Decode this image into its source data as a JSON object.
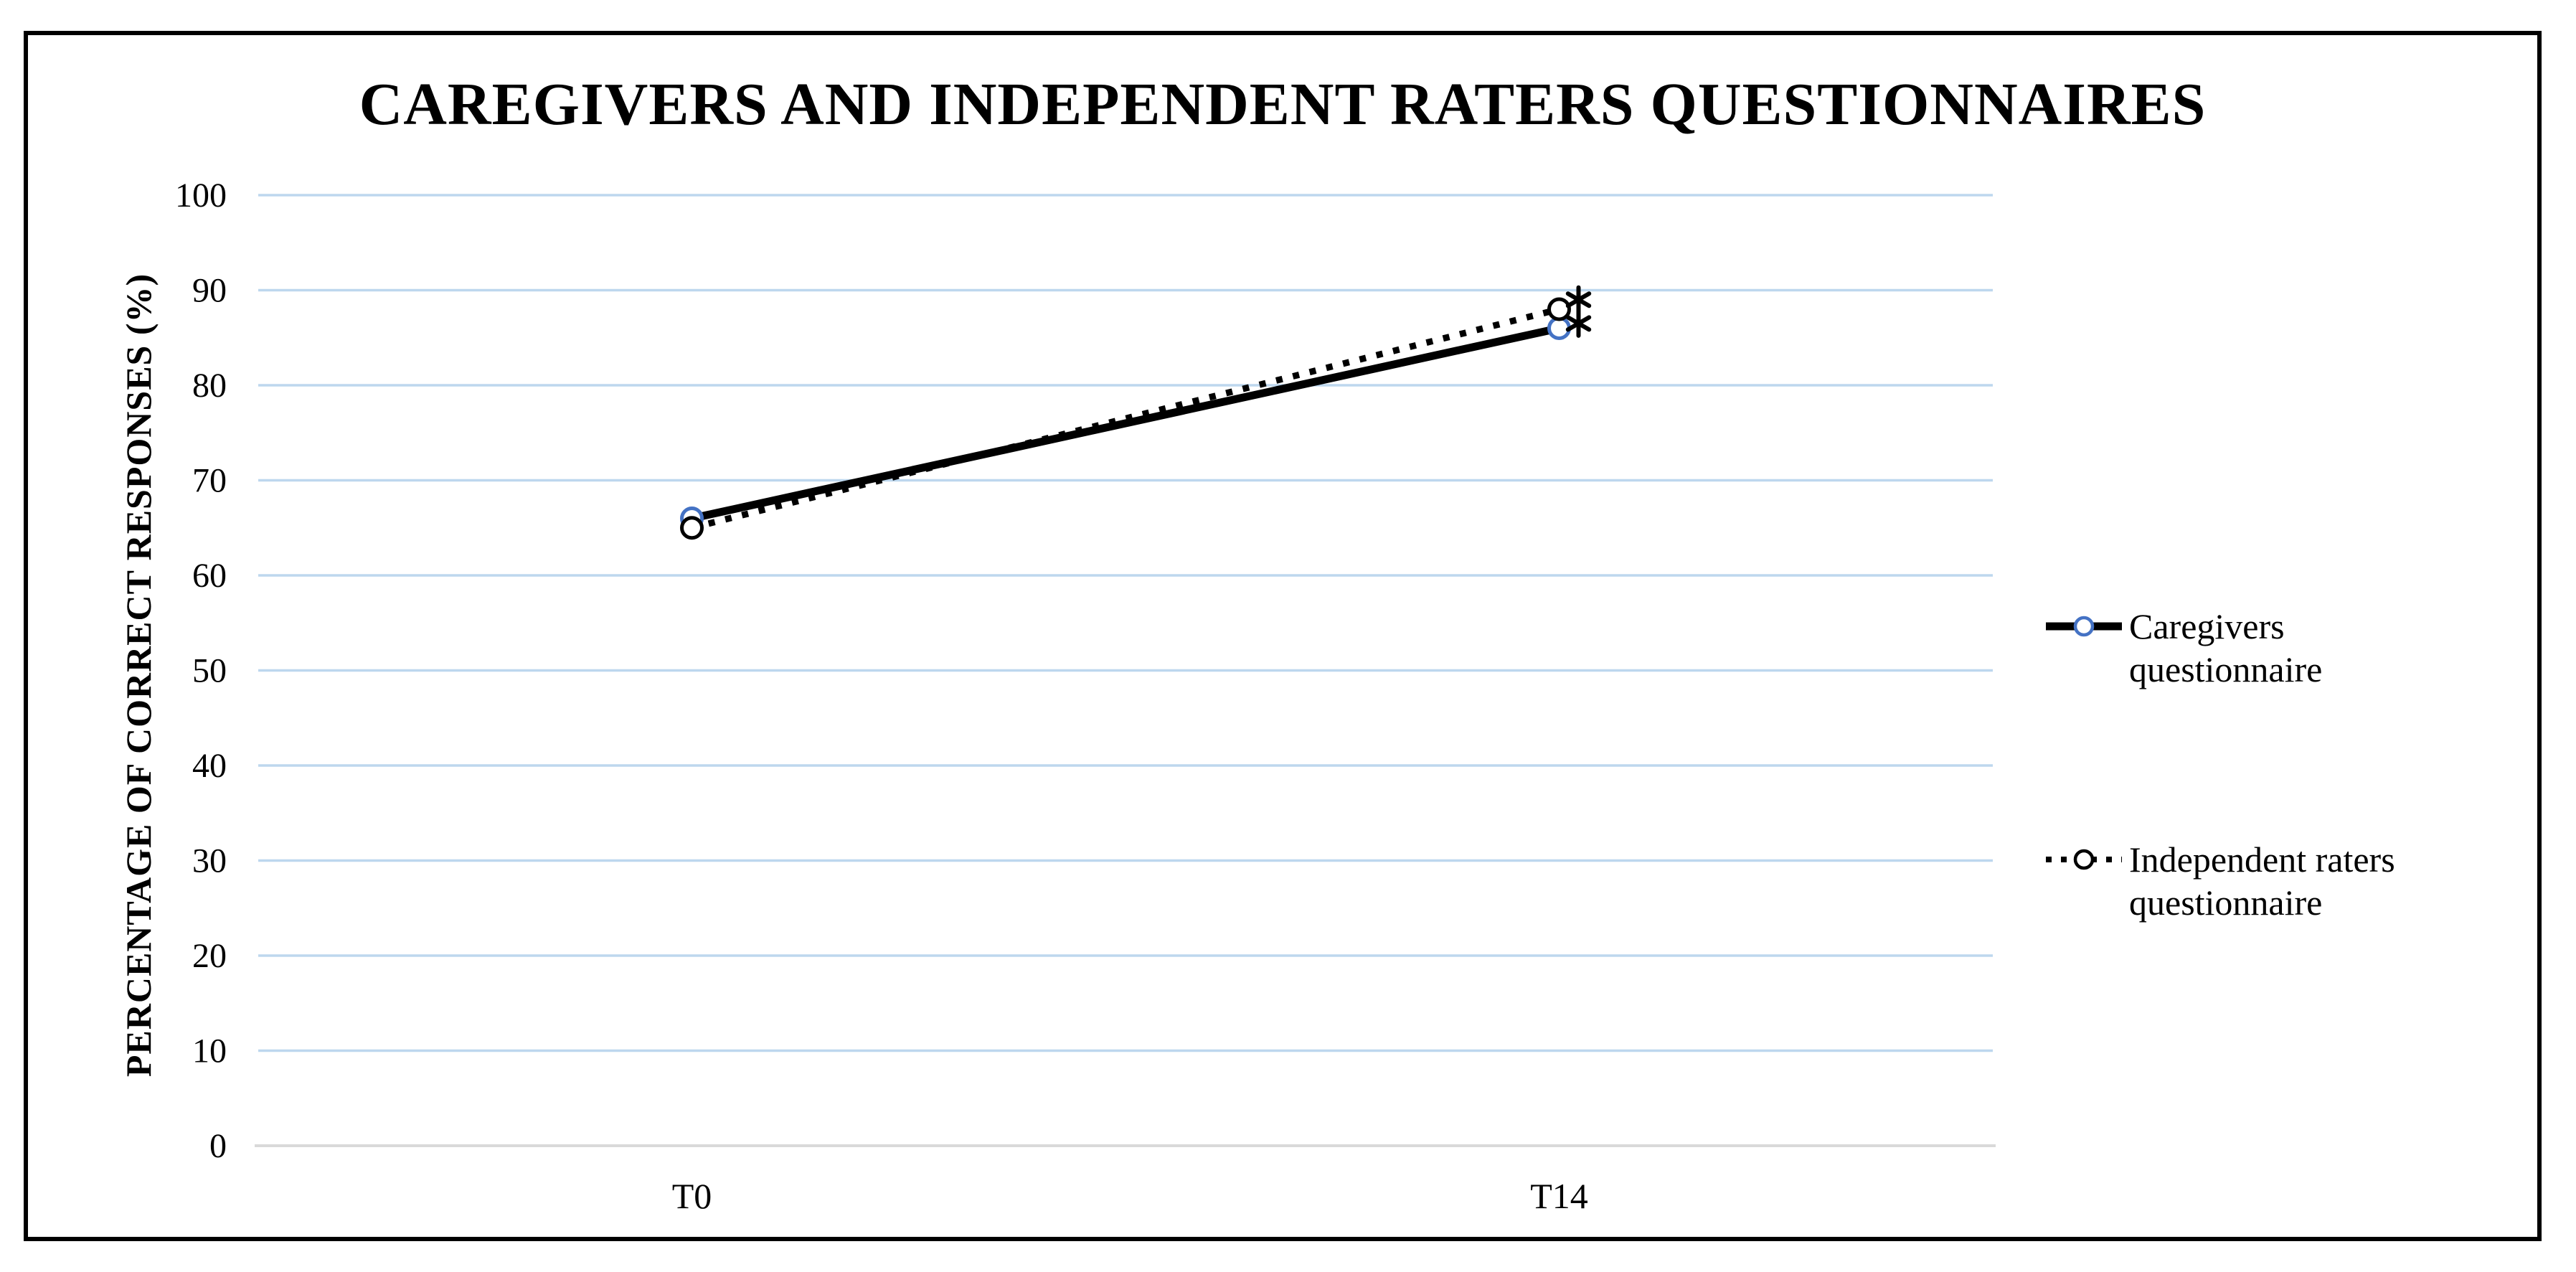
{
  "figure": {
    "background": "#FFFFFF",
    "border_color": "#000000"
  },
  "chart_data": {
    "type": "line",
    "title": "CAREGIVERS AND INDEPENDENT RATERS QUESTIONNAIRES",
    "ylabel": "PERCENTAGE OF CORRECT RESPONSES (%)",
    "xlabel": "",
    "categories": [
      "T0",
      "T14"
    ],
    "series": [
      {
        "name": "Caregivers questionnaire",
        "values": [
          66,
          86
        ],
        "line_style": "solid",
        "line_color": "#000000",
        "marker": "open-circle",
        "marker_color": "#4472C4"
      },
      {
        "name": "Independent raters questionnaire",
        "values": [
          65,
          88
        ],
        "line_style": "dotted",
        "line_color": "#000000",
        "marker": "open-circle",
        "marker_color": "#000000"
      }
    ],
    "ylim": [
      0,
      100
    ],
    "y_ticks": [
      100,
      90,
      80,
      70,
      60,
      50,
      40,
      30,
      20,
      10,
      0
    ],
    "grid": "horizontal",
    "gridline_color": "#BDD7EE",
    "axis_line_color": "#D9D9D9",
    "legend_position": "right",
    "annotations": [
      {
        "text": "*",
        "category": "T14",
        "y": 89
      },
      {
        "text": "*",
        "category": "T14",
        "y": 86.5
      }
    ]
  }
}
